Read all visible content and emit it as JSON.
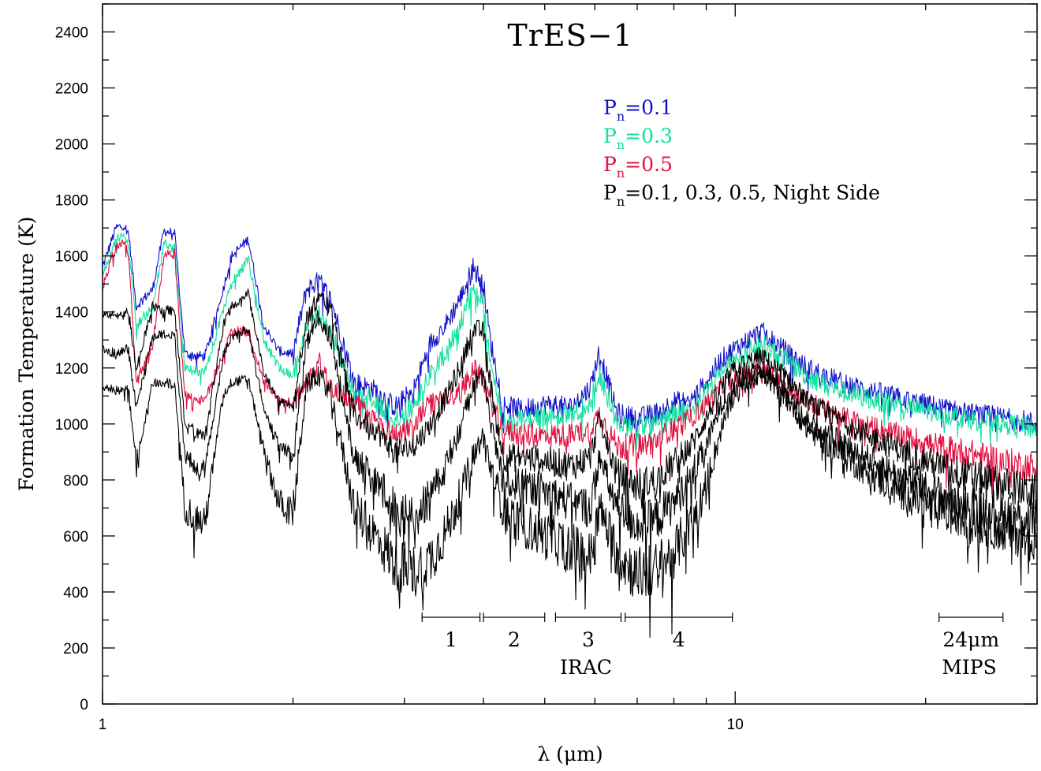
{
  "chart_data": {
    "type": "line",
    "title": "TrES−1",
    "xlabel": "λ (μm)",
    "ylabel": "Formation Temperature (K)",
    "xscale": "log",
    "xlim": [
      1,
      30
    ],
    "ylim": [
      0,
      2500
    ],
    "x_ticks": [
      {
        "value": 1,
        "label": "1"
      },
      {
        "value": 10,
        "label": "10"
      }
    ],
    "y_ticks": [
      {
        "value": 0,
        "label": "0"
      },
      {
        "value": 200,
        "label": "200"
      },
      {
        "value": 400,
        "label": "400"
      },
      {
        "value": 600,
        "label": "600"
      },
      {
        "value": 800,
        "label": "800"
      },
      {
        "value": 1000,
        "label": "1000"
      },
      {
        "value": 1200,
        "label": "1200"
      },
      {
        "value": 1400,
        "label": "1400"
      },
      {
        "value": 1600,
        "label": "1600"
      },
      {
        "value": 1800,
        "label": "1800"
      },
      {
        "value": 2000,
        "label": "2000"
      },
      {
        "value": 2200,
        "label": "2200"
      },
      {
        "value": 2400,
        "label": "2400"
      }
    ],
    "grid": false,
    "legend": {
      "placement": "top-right",
      "entries": [
        {
          "base": "P",
          "sub": "n",
          "rest": "=0.1",
          "color": "#1010c8"
        },
        {
          "base": "P",
          "sub": "n",
          "rest": "=0.3",
          "color": "#10e0a0"
        },
        {
          "base": "P",
          "sub": "n",
          "rest": "=0.5",
          "color": "#e01040"
        },
        {
          "base": "P",
          "sub": "n",
          "rest": "=0.1, 0.3, 0.5, Night Side",
          "color": "#000000"
        }
      ]
    },
    "bands": [
      {
        "label": "1",
        "start": 3.2,
        "end": 3.95
      },
      {
        "label": "2",
        "start": 4.0,
        "end": 5.0
      },
      {
        "label": "3",
        "start": 5.2,
        "end": 6.6
      },
      {
        "label": "4",
        "start": 6.7,
        "end": 9.9
      },
      {
        "label": "24μm",
        "start": 21.0,
        "end": 26.5
      }
    ],
    "group_labels": [
      "IRAC",
      "MIPS"
    ],
    "series": [
      {
        "color": "#1010c8",
        "x": [
          1.0,
          1.05,
          1.08,
          1.1,
          1.13,
          1.2,
          1.25,
          1.3,
          1.35,
          1.45,
          1.55,
          1.6,
          1.7,
          1.8,
          1.9,
          2.0,
          2.1,
          2.2,
          2.3,
          2.5,
          2.7,
          2.9,
          3.1,
          3.3,
          3.5,
          3.7,
          3.85,
          4.0,
          4.1,
          4.3,
          4.6,
          5.0,
          5.5,
          5.9,
          6.1,
          6.5,
          7.0,
          7.5,
          8.0,
          8.5,
          9.0,
          9.5,
          10.0,
          11.0,
          12.0,
          13.0,
          15.0,
          17.0,
          19.0,
          21.0,
          23.0,
          25.0,
          27.0,
          29.0,
          30.0
        ],
        "y": [
          1560,
          1700,
          1710,
          1680,
          1420,
          1480,
          1690,
          1680,
          1250,
          1240,
          1480,
          1600,
          1660,
          1350,
          1260,
          1250,
          1480,
          1510,
          1440,
          1150,
          1120,
          1060,
          1120,
          1290,
          1360,
          1460,
          1560,
          1500,
          1300,
          1070,
          1050,
          1070,
          1060,
          1130,
          1260,
          1040,
          1020,
          1040,
          1080,
          1080,
          1150,
          1230,
          1270,
          1330,
          1260,
          1200,
          1140,
          1110,
          1080,
          1060,
          1040,
          1030,
          1020,
          1010,
          1000
        ]
      },
      {
        "color": "#10e0a0",
        "x": [
          1.0,
          1.05,
          1.08,
          1.1,
          1.13,
          1.2,
          1.25,
          1.3,
          1.35,
          1.45,
          1.55,
          1.6,
          1.7,
          1.8,
          1.9,
          2.0,
          2.1,
          2.2,
          2.3,
          2.5,
          2.7,
          2.9,
          3.1,
          3.3,
          3.5,
          3.7,
          3.85,
          4.0,
          4.1,
          4.3,
          4.6,
          5.0,
          5.5,
          5.9,
          6.1,
          6.5,
          7.0,
          7.5,
          8.0,
          8.5,
          9.0,
          9.5,
          10.0,
          11.0,
          12.0,
          13.0,
          15.0,
          17.0,
          19.0,
          21.0,
          23.0,
          25.0,
          27.0,
          29.0,
          30.0
        ],
        "y": [
          1530,
          1660,
          1670,
          1640,
          1350,
          1420,
          1640,
          1640,
          1200,
          1180,
          1400,
          1500,
          1590,
          1300,
          1200,
          1170,
          1360,
          1390,
          1330,
          1100,
          1080,
          1020,
          1060,
          1180,
          1260,
          1380,
          1470,
          1430,
          1230,
          1010,
          1010,
          1030,
          1030,
          1080,
          1180,
          1000,
          990,
          1010,
          1040,
          1050,
          1110,
          1190,
          1230,
          1290,
          1230,
          1170,
          1110,
          1080,
          1060,
          1040,
          1020,
          1010,
          1000,
          990,
          980
        ]
      },
      {
        "color": "#e01040",
        "x": [
          1.0,
          1.05,
          1.08,
          1.1,
          1.13,
          1.2,
          1.25,
          1.3,
          1.35,
          1.45,
          1.55,
          1.6,
          1.7,
          1.8,
          1.9,
          2.0,
          2.1,
          2.2,
          2.3,
          2.5,
          2.7,
          2.9,
          3.1,
          3.3,
          3.5,
          3.7,
          3.85,
          4.0,
          4.1,
          4.3,
          4.6,
          5.0,
          5.5,
          5.9,
          6.1,
          6.5,
          7.0,
          7.5,
          8.0,
          8.5,
          9.0,
          9.5,
          10.0,
          11.0,
          12.0,
          13.0,
          15.0,
          17.0,
          19.0,
          21.0,
          23.0,
          25.0,
          27.0,
          29.0,
          30.0
        ],
        "y": [
          1490,
          1630,
          1650,
          1600,
          1150,
          1280,
          1600,
          1610,
          1100,
          1080,
          1250,
          1330,
          1330,
          1150,
          1090,
          1070,
          1150,
          1220,
          1130,
          1080,
          1010,
          960,
          1000,
          1080,
          1080,
          1120,
          1200,
          1160,
          1080,
          980,
          960,
          960,
          960,
          980,
          1040,
          920,
          920,
          940,
          990,
          1020,
          1070,
          1130,
          1160,
          1200,
          1140,
          1080,
          1020,
          980,
          950,
          920,
          900,
          880,
          860,
          850,
          840
        ]
      },
      {
        "color": "#000000",
        "x": [
          1.0,
          1.05,
          1.08,
          1.1,
          1.13,
          1.2,
          1.25,
          1.3,
          1.35,
          1.45,
          1.55,
          1.6,
          1.7,
          1.8,
          1.9,
          2.0,
          2.1,
          2.2,
          2.3,
          2.5,
          2.7,
          2.9,
          3.1,
          3.3,
          3.5,
          3.7,
          3.85,
          4.0,
          4.1,
          4.3,
          4.6,
          5.0,
          5.5,
          5.9,
          6.1,
          6.5,
          7.0,
          7.5,
          8.0,
          8.5,
          9.0,
          9.5,
          10.0,
          11.0,
          12.0,
          13.0,
          15.0,
          17.0,
          19.0,
          21.0,
          23.0,
          25.0,
          27.0,
          29.0,
          30.0
        ],
        "y": [
          1400,
          1380,
          1390,
          1400,
          1200,
          1420,
          1410,
          1400,
          1000,
          950,
          1350,
          1420,
          1470,
          1180,
          1080,
          1060,
          1380,
          1450,
          1400,
          1030,
          980,
          900,
          920,
          1000,
          1100,
          1220,
          1340,
          1330,
          1150,
          880,
          880,
          870,
          850,
          880,
          1020,
          820,
          780,
          800,
          860,
          920,
          1020,
          1130,
          1200,
          1240,
          1170,
          1080,
          1000,
          940,
          890,
          850,
          820,
          800,
          780,
          760,
          750
        ]
      },
      {
        "color": "#000000",
        "x": [
          1.0,
          1.05,
          1.08,
          1.1,
          1.13,
          1.2,
          1.25,
          1.3,
          1.35,
          1.45,
          1.55,
          1.6,
          1.7,
          1.8,
          1.9,
          2.0,
          2.1,
          2.2,
          2.3,
          2.5,
          2.7,
          2.9,
          3.1,
          3.3,
          3.5,
          3.7,
          3.85,
          4.0,
          4.1,
          4.3,
          4.6,
          5.0,
          5.5,
          5.9,
          6.1,
          6.5,
          7.0,
          7.5,
          8.0,
          8.5,
          9.0,
          9.5,
          10.0,
          11.0,
          12.0,
          13.0,
          15.0,
          17.0,
          19.0,
          21.0,
          23.0,
          25.0,
          27.0,
          29.0,
          30.0
        ],
        "y": [
          1270,
          1250,
          1260,
          1270,
          1060,
          1310,
          1320,
          1310,
          880,
          830,
          1240,
          1310,
          1340,
          1050,
          920,
          890,
          1290,
          1390,
          1300,
          880,
          800,
          700,
          660,
          740,
          860,
          1000,
          1150,
          1180,
          1000,
          800,
          780,
          760,
          720,
          700,
          880,
          700,
          640,
          660,
          720,
          810,
          920,
          1070,
          1150,
          1200,
          1120,
          1010,
          920,
          850,
          790,
          750,
          720,
          700,
          680,
          660,
          650
        ]
      },
      {
        "color": "#000000",
        "x": [
          1.0,
          1.05,
          1.08,
          1.1,
          1.13,
          1.2,
          1.25,
          1.3,
          1.35,
          1.45,
          1.55,
          1.6,
          1.7,
          1.8,
          1.9,
          2.0,
          2.1,
          2.2,
          2.3,
          2.5,
          2.7,
          2.9,
          3.1,
          3.3,
          3.5,
          3.7,
          3.85,
          4.0,
          4.1,
          4.3,
          4.6,
          5.0,
          5.5,
          5.9,
          6.1,
          6.5,
          7.0,
          7.5,
          8.0,
          8.5,
          9.0,
          9.5,
          10.0,
          11.0,
          12.0,
          13.0,
          15.0,
          17.0,
          19.0,
          21.0,
          23.0,
          25.0,
          27.0,
          29.0,
          30.0
        ],
        "y": [
          1130,
          1120,
          1120,
          1130,
          860,
          1150,
          1150,
          1140,
          700,
          640,
          1100,
          1150,
          1160,
          900,
          720,
          680,
          1140,
          1180,
          1100,
          700,
          600,
          500,
          470,
          520,
          620,
          760,
          880,
          960,
          850,
          700,
          640,
          600,
          560,
          520,
          700,
          540,
          460,
          480,
          540,
          640,
          780,
          980,
          1120,
          1180,
          1100,
          980,
          880,
          800,
          740,
          690,
          660,
          640,
          620,
          600,
          590
        ]
      }
    ]
  }
}
